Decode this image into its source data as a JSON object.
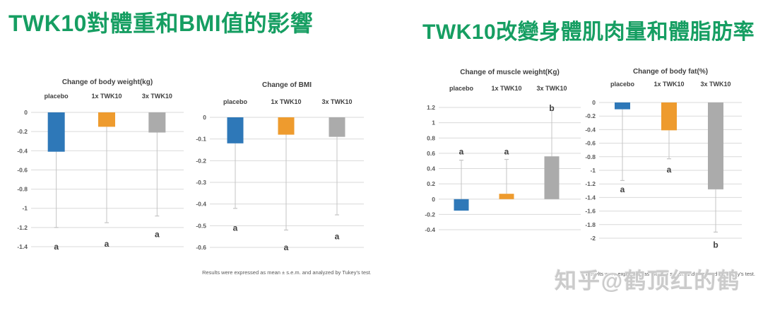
{
  "titles": {
    "left": "TWK10對體重和BMI值的影響",
    "right": "TWK10改變身體肌肉量和體脂肪率"
  },
  "watermark": {
    "text": "知乎@鹤顶红的鹤"
  },
  "colors": {
    "title_green": "#169e62",
    "bar_blue": "#2e78b8",
    "bar_orange": "#ee9b2e",
    "bar_gray": "#ababab",
    "gridline": "#d9d9d9",
    "whisker": "#c4c4c4",
    "text_dark": "#404040",
    "text_tick": "#595959",
    "footer_text": "#595959",
    "watermark_gray": "#c9c9c9"
  },
  "chart_data": [
    {
      "type": "bar",
      "title": "Change of body weight(kg)",
      "categories": [
        "placebo",
        "1x TWK10",
        "3x TWK10"
      ],
      "values": [
        -0.41,
        -0.15,
        -0.21
      ],
      "error_tips": [
        -1.2,
        -1.15,
        -1.08
      ],
      "sig_labels": [
        "a",
        "a",
        "a"
      ],
      "sig_pos": [
        -1.4,
        -1.37,
        -1.27
      ],
      "ylim": [
        -1.4,
        0
      ],
      "ytick_step": 0.2,
      "grid": true,
      "legend": "none",
      "bar_colors": [
        "#2e78b8",
        "#ee9b2e",
        "#ababab"
      ]
    },
    {
      "type": "bar",
      "title": "Change of BMI",
      "categories": [
        "placebo",
        "1x TWK10",
        "3x TWK10"
      ],
      "values": [
        -0.12,
        -0.08,
        -0.09
      ],
      "error_tips": [
        -0.42,
        -0.52,
        -0.45
      ],
      "sig_labels": [
        "a",
        "a",
        "a"
      ],
      "sig_pos": [
        -0.51,
        -0.6,
        -0.55
      ],
      "ylim": [
        -0.6,
        0
      ],
      "ytick_step": 0.1,
      "grid": true,
      "legend": "none",
      "bar_colors": [
        "#2e78b8",
        "#ee9b2e",
        "#ababab"
      ],
      "footer": "Results were expressed as mean ± s.e.m. and analyzed by Tukey's test."
    },
    {
      "type": "bar",
      "title": "Change of muscle weight(Kg)",
      "categories": [
        "placebo",
        "1x TWK10",
        "3x TWK10"
      ],
      "values": [
        -0.15,
        0.07,
        0.56
      ],
      "error_tips": [
        0.51,
        0.52,
        1.16
      ],
      "sig_labels": [
        "a",
        "a",
        "b"
      ],
      "sig_pos": [
        0.62,
        0.62,
        1.19
      ],
      "ylim": [
        -0.4,
        1.2
      ],
      "ytick_step": 0.2,
      "grid": true,
      "legend": "none",
      "bar_colors": [
        "#2e78b8",
        "#ee9b2e",
        "#ababab"
      ]
    },
    {
      "type": "bar",
      "title": "Change of body fat(%)",
      "categories": [
        "placebo",
        "1x TWK10",
        "3x TWK10"
      ],
      "values": [
        -0.1,
        -0.41,
        -1.28
      ],
      "error_tips": [
        -1.15,
        -0.83,
        -1.91
      ],
      "sig_labels": [
        "a",
        "a",
        "b"
      ],
      "sig_pos": [
        -1.28,
        -0.99,
        -2.1
      ],
      "ylim": [
        -2,
        0
      ],
      "ytick_step": 0.2,
      "grid": true,
      "legend": "none",
      "bar_colors": [
        "#2e78b8",
        "#ee9b2e",
        "#ababab"
      ],
      "footer": "Results were expressed as mean ± s.e.m. and analyzed by Tukey's test."
    }
  ]
}
